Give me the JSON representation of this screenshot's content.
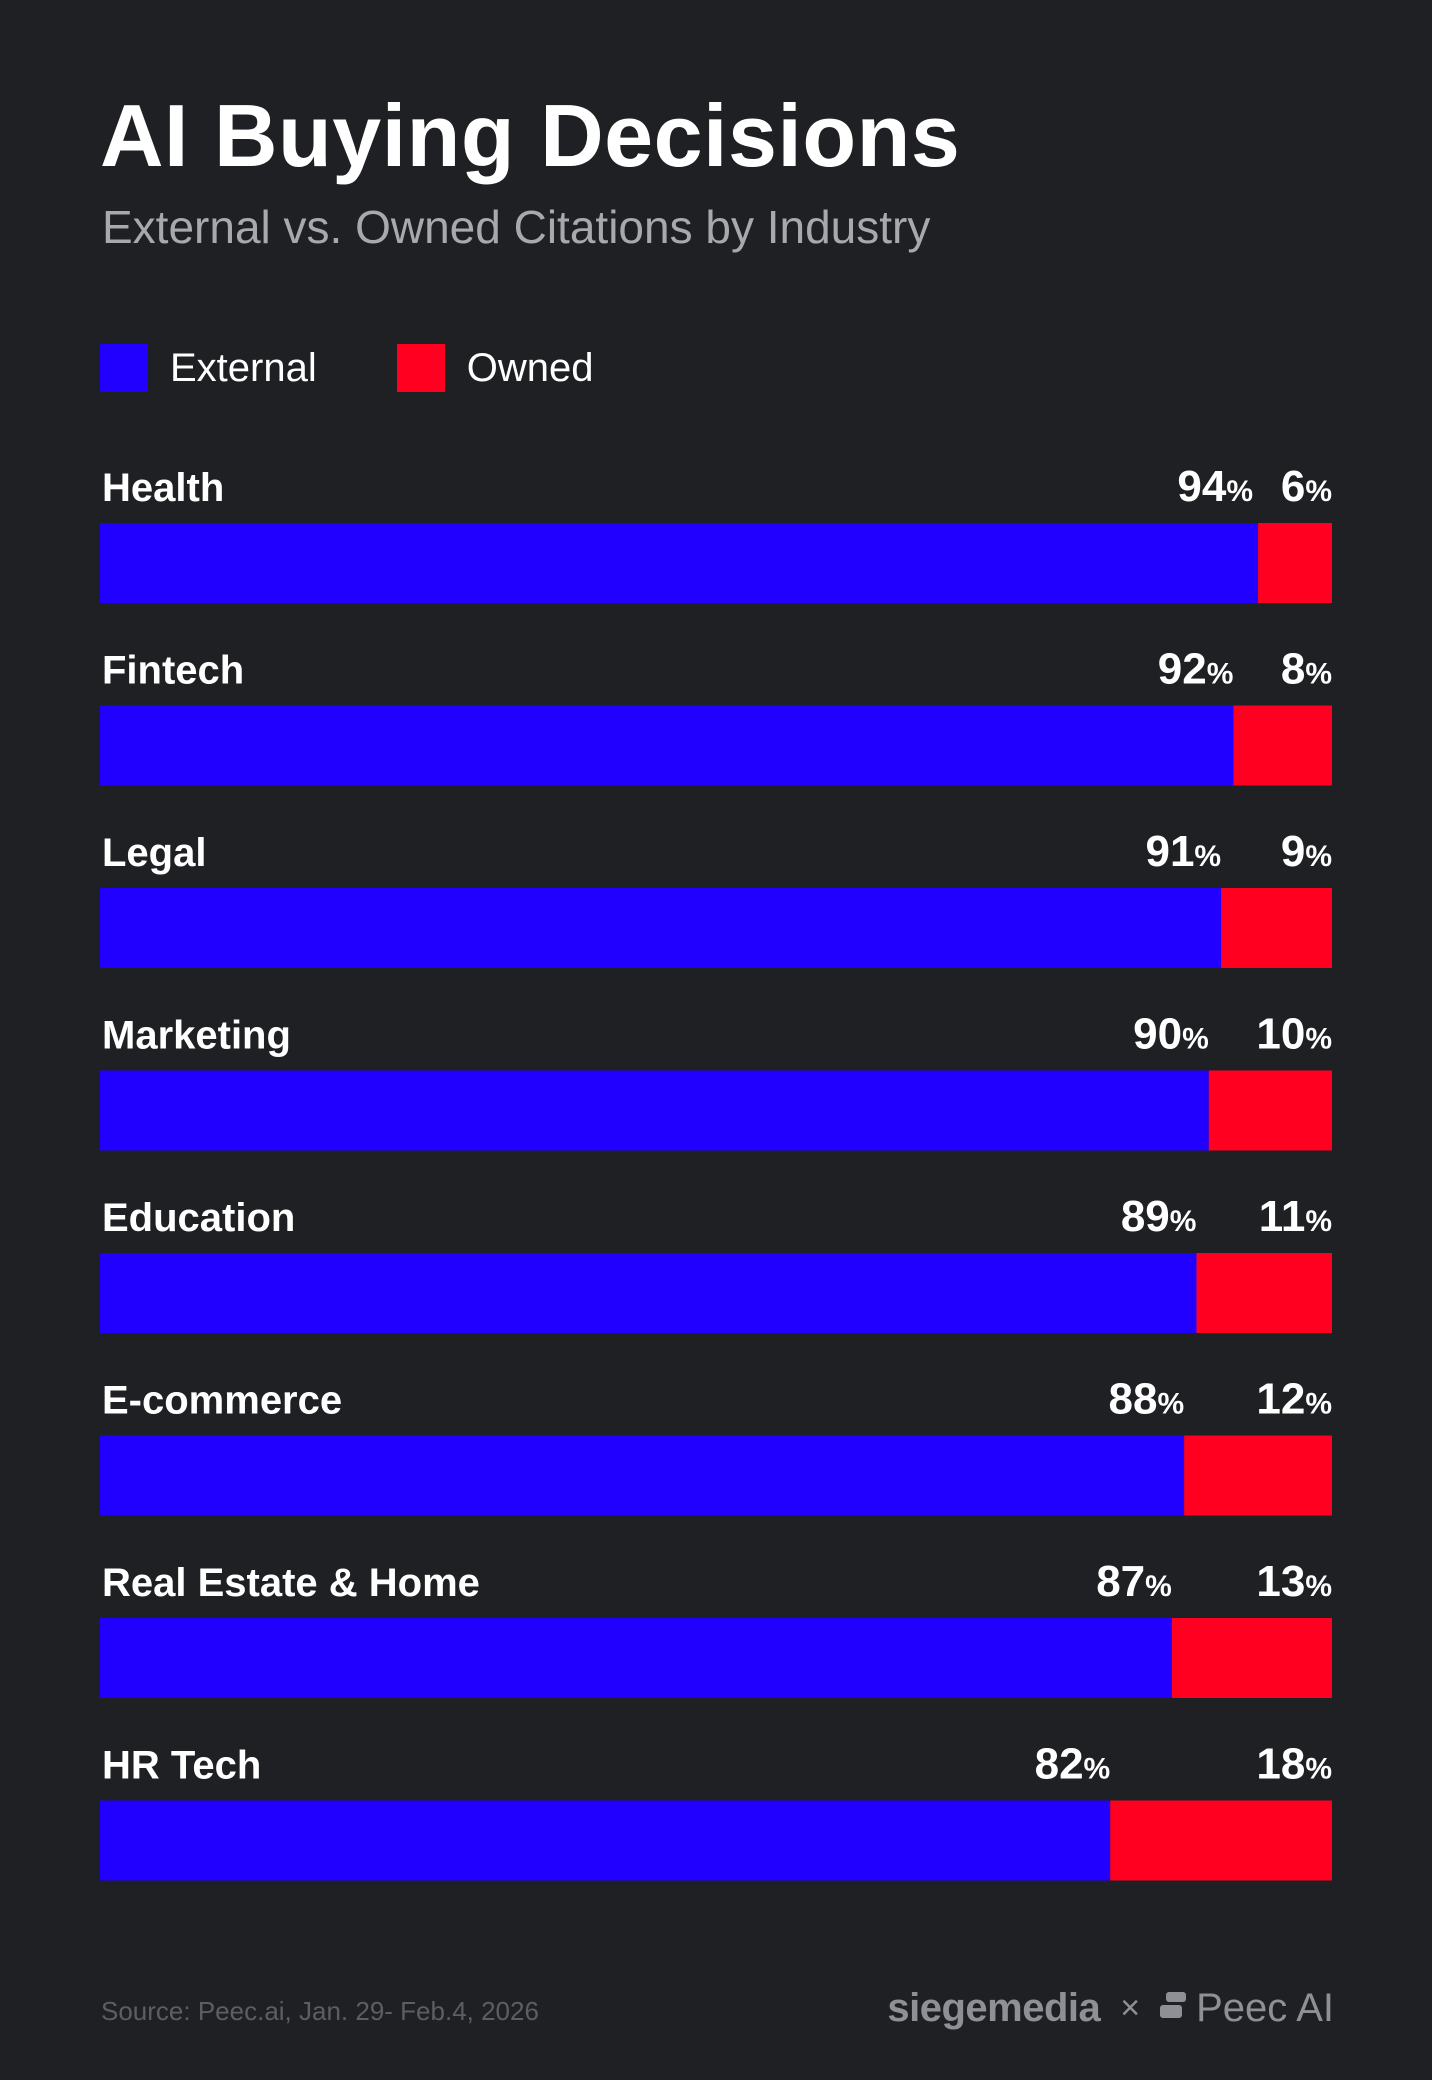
{
  "header": {
    "title": "AI Buying Decisions",
    "subtitle": "External vs. Owned Citations by Industry"
  },
  "legend": {
    "items": [
      {
        "label": "External",
        "color": "#2200ff"
      },
      {
        "label": "Owned",
        "color": "#ff0020"
      }
    ]
  },
  "colors": {
    "background": "#1f2023",
    "external": "#2200ff",
    "owned": "#ff0020"
  },
  "chart_data": {
    "type": "bar",
    "orientation": "horizontal",
    "stacked": true,
    "percent_suffix": "%",
    "categories": [
      "Health",
      "Fintech",
      "Legal",
      "Marketing",
      "Education",
      "E-commerce",
      "Real Estate & Home",
      "HR Tech"
    ],
    "series": [
      {
        "name": "External",
        "values": [
          94,
          92,
          91,
          90,
          89,
          88,
          87,
          82
        ]
      },
      {
        "name": "Owned",
        "values": [
          6,
          8,
          9,
          10,
          11,
          12,
          13,
          18
        ]
      }
    ],
    "xlim": [
      0,
      100
    ],
    "grid": false,
    "legend_position": "top-left"
  },
  "footer": {
    "source": "Source: Peec.ai, Jan. 29- Feb.4, 2026",
    "brand_left": "siegemedia",
    "separator": "×",
    "brand_right": "Peec AI",
    "brand_right_icon": "peec-logo-icon"
  }
}
